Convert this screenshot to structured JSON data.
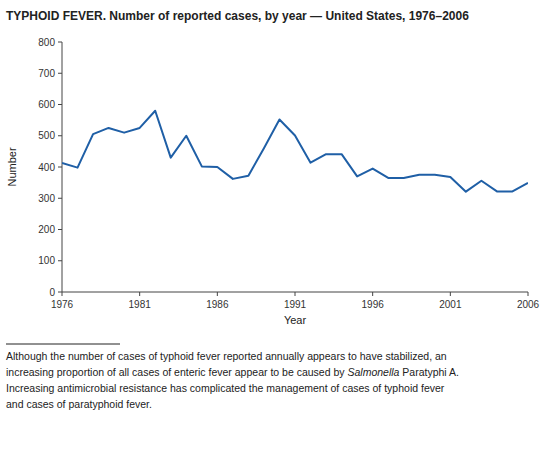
{
  "chart_data": {
    "type": "line",
    "title": "TYPHOID FEVER. Number of reported cases, by year — United States, 1976–2006",
    "x": [
      1976,
      1977,
      1978,
      1979,
      1980,
      1981,
      1982,
      1983,
      1984,
      1985,
      1986,
      1987,
      1988,
      1989,
      1990,
      1991,
      1992,
      1993,
      1994,
      1995,
      1996,
      1997,
      1998,
      1999,
      2000,
      2001,
      2002,
      2003,
      2004,
      2005,
      2006
    ],
    "values": [
      413,
      398,
      505,
      525,
      510,
      525,
      580,
      430,
      500,
      402,
      400,
      362,
      372,
      460,
      552,
      501,
      414,
      441,
      441,
      370,
      395,
      365,
      365,
      375,
      375,
      368,
      321,
      356,
      322,
      322,
      349
    ],
    "color": "#1f5fa6",
    "xlabel": "Year",
    "ylabel": "Number",
    "xlim": [
      1976,
      2006
    ],
    "ylim": [
      0,
      800
    ],
    "xticks": [
      1976,
      1981,
      1986,
      1991,
      1996,
      2001,
      2006
    ],
    "yticks": [
      0,
      100,
      200,
      300,
      400,
      500,
      600,
      700,
      800
    ],
    "annotations": [
      [
        "Although the number of cases of typhoid fever reported annually appears to have stabilized, an"
      ],
      [
        "increasing proportion of all cases of enteric fever appear to be caused by ",
        "Salmonella",
        " Paratyphi A."
      ],
      [
        "Increasing antimicrobial resistance has complicated the management of cases of typhoid fever"
      ],
      [
        "and cases of paratyphoid fever."
      ]
    ]
  }
}
